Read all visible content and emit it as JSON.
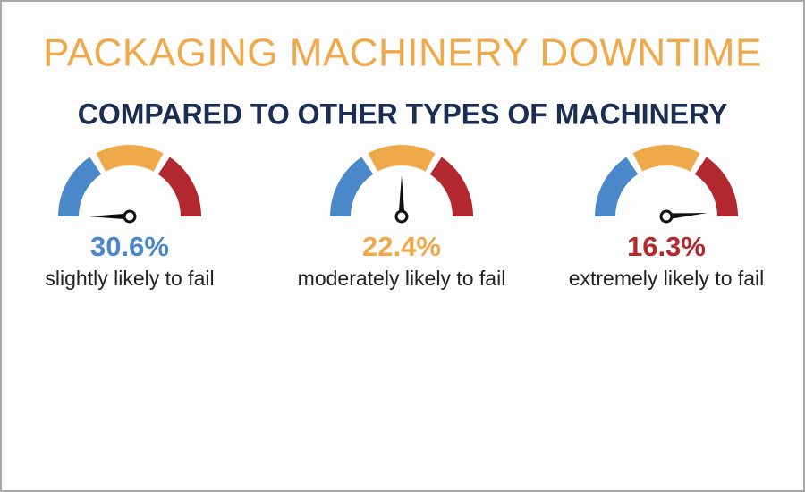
{
  "header": {
    "title": "PACKAGING MACHINERY DOWNTIME",
    "subtitle": "COMPARED TO OTHER TYPES OF MACHINERY"
  },
  "gauges": [
    {
      "value": "30.6%",
      "label": "slightly likely to fail"
    },
    {
      "value": "22.4%",
      "label": "moderately likely to fail"
    },
    {
      "value": "16.3%",
      "label": "extremely likely to fail"
    }
  ]
}
